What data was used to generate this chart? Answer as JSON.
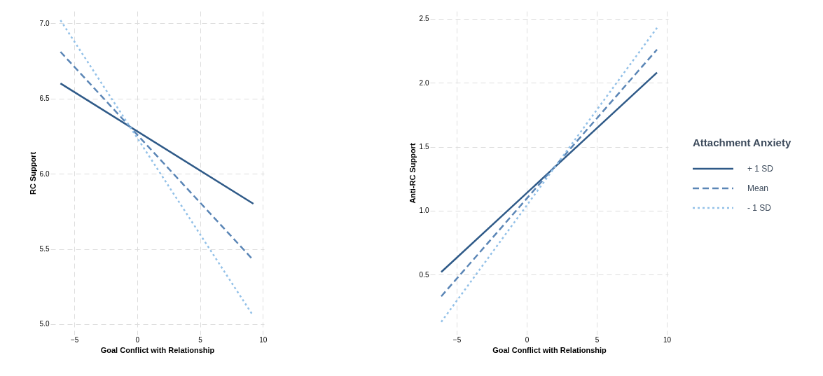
{
  "chart_data": [
    {
      "type": "line",
      "xlabel": "Goal Conflict with Relationship",
      "ylabel": "RC Support",
      "xlim": [
        -6.9,
        10.1
      ],
      "ylim": [
        4.93,
        7.08
      ],
      "xticks": [
        -5,
        0,
        5,
        10
      ],
      "yticks": [
        {
          "value": 5,
          "label": "5.0"
        },
        5.5,
        {
          "value": 6,
          "label": "6.0"
        },
        6.5,
        {
          "value": 7,
          "label": "7.0"
        }
      ],
      "grid": true,
      "series": [
        {
          "color": "#2f5a88",
          "line_style": "solid",
          "x": [
            -6.1,
            9.25
          ],
          "values": [
            6.6,
            5.8
          ]
        },
        {
          "color": "#5b86b6",
          "line_style": "dashed",
          "x": [
            -6.1,
            9.2
          ],
          "values": [
            6.81,
            5.43
          ]
        },
        {
          "color": "#93c1e8",
          "line_style": "dotted",
          "x": [
            -6.1,
            9.2
          ],
          "values": [
            7.02,
            5.06
          ]
        }
      ]
    },
    {
      "type": "line",
      "xlabel": "Goal Conflict with Relationship",
      "ylabel": "Anti-RC Support",
      "x": [
        -6.1,
        9.3
      ],
      "xlim": [
        -6.9,
        10.1
      ],
      "ylim": [
        0.03,
        2.56
      ],
      "xticks": [
        -5,
        0,
        5,
        10
      ],
      "yticks": [
        0.5,
        {
          "value": 1,
          "label": "1.0"
        },
        1.5,
        {
          "value": 2,
          "label": "2.0"
        },
        2.5
      ],
      "grid": true,
      "legend": "right",
      "legend_title": "Attachment Anxiety",
      "series": [
        {
          "name": "+ 1 SD",
          "color": "#2f5a88",
          "line_style": "solid",
          "values": [
            0.52,
            2.08
          ]
        },
        {
          "name": "Mean",
          "color": "#5b86b6",
          "line_style": "dashed",
          "values": [
            0.33,
            2.26
          ]
        },
        {
          "name": "- 1 SD",
          "color": "#93c1e8",
          "line_style": "dotted",
          "values": [
            0.13,
            2.43
          ]
        }
      ]
    }
  ]
}
